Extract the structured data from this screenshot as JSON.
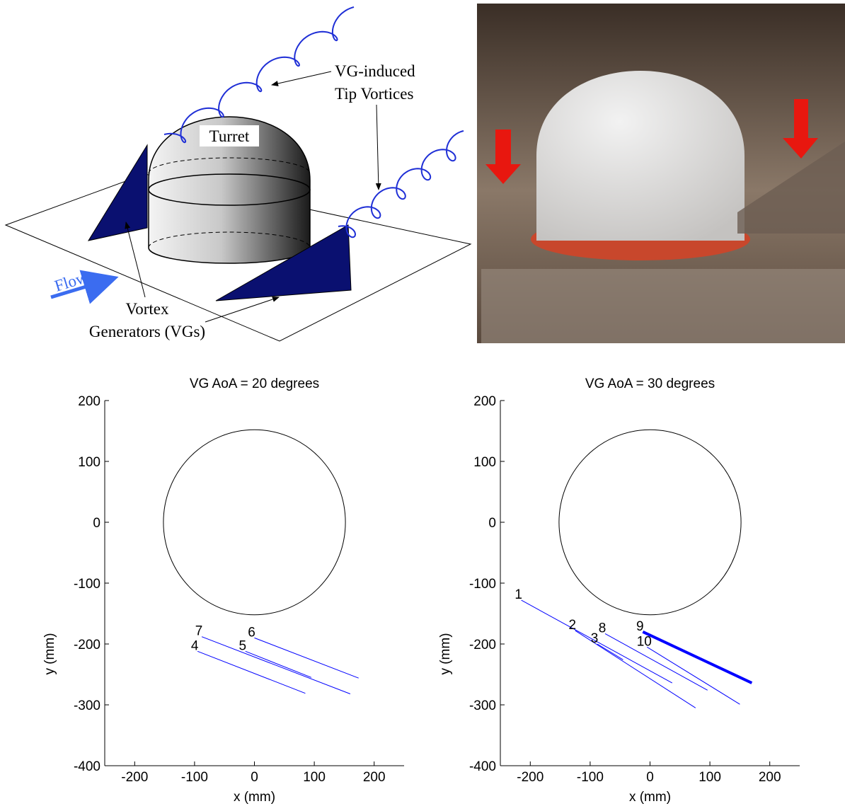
{
  "diagram": {
    "tip_vortices": [
      "VG-induced",
      "Tip Vortices"
    ],
    "turret": "Turret",
    "flow": "Flow",
    "vgs": [
      "Vortex",
      "Generators (VGs)"
    ]
  },
  "chart_data": [
    {
      "type": "line",
      "title": "VG AoA = 20 degrees",
      "xlabel": "x (mm)",
      "ylabel": "y (mm)",
      "xlim": [
        -250,
        250
      ],
      "ylim": [
        -400,
        200
      ],
      "xticks": [
        -200,
        -100,
        0,
        100,
        200
      ],
      "yticks": [
        -400,
        -300,
        -200,
        -100,
        0,
        100,
        200
      ],
      "circle_radius": 152,
      "series": [
        {
          "label": "7",
          "color": "#0000ff",
          "linewidth": 1,
          "x": [
            -88,
            160
          ],
          "values": [
            -188,
            -282
          ]
        },
        {
          "label": "4",
          "color": "#0000ff",
          "linewidth": 1,
          "x": [
            -95,
            85
          ],
          "values": [
            -212,
            -281
          ]
        },
        {
          "label": "6",
          "color": "#0000ff",
          "linewidth": 1,
          "x": [
            0,
            174
          ],
          "values": [
            -190,
            -256
          ]
        },
        {
          "label": "5",
          "color": "#0000ff",
          "linewidth": 1,
          "x": [
            -15,
            95
          ],
          "values": [
            -212,
            -255
          ]
        }
      ]
    },
    {
      "type": "line",
      "title": "VG AoA = 30 degrees",
      "xlabel": "x (mm)",
      "ylabel": "y (mm)",
      "xlim": [
        -250,
        250
      ],
      "ylim": [
        -400,
        200
      ],
      "xticks": [
        -200,
        -100,
        0,
        100,
        200
      ],
      "yticks": [
        -400,
        -300,
        -200,
        -100,
        0,
        100,
        200
      ],
      "circle_radius": 152,
      "series": [
        {
          "label": "1",
          "color": "#0000ff",
          "linewidth": 1,
          "x": [
            -215,
            37
          ],
          "values": [
            -128,
            -264
          ]
        },
        {
          "label": "2",
          "color": "#0000ff",
          "linewidth": 1,
          "x": [
            -125,
            76
          ],
          "values": [
            -178,
            -305
          ]
        },
        {
          "label": "3",
          "color": "#0000ff",
          "linewidth": 1,
          "x": [
            -88,
            -45
          ],
          "values": [
            -200,
            -226
          ]
        },
        {
          "label": "8",
          "color": "#0000ff",
          "linewidth": 1,
          "x": [
            -75,
            96
          ],
          "values": [
            -183,
            -276
          ]
        },
        {
          "label": "10",
          "color": "#0000ff",
          "linewidth": 1,
          "x": [
            -5,
            150
          ],
          "values": [
            -205,
            -299
          ]
        },
        {
          "label": "9",
          "color": "#0000ff",
          "linewidth": 4,
          "x": [
            -12,
            170
          ],
          "values": [
            -180,
            -264
          ]
        }
      ]
    }
  ]
}
